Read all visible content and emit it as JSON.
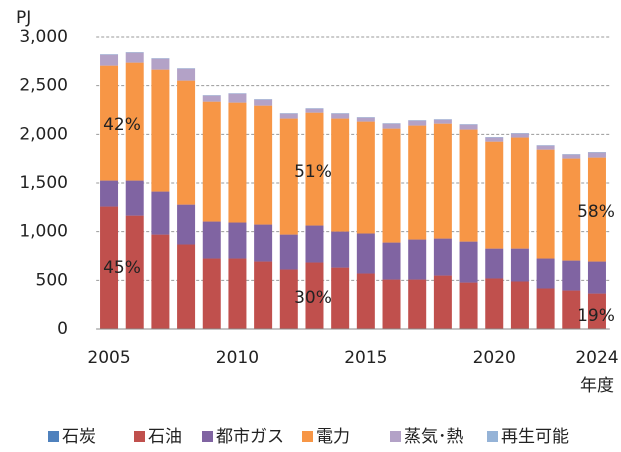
{
  "chart_data": {
    "type": "stacked_bar",
    "y_axis_label": "PJ",
    "x_axis_label": "年度",
    "categories": [
      "2005",
      null,
      null,
      null,
      null,
      "2010",
      null,
      null,
      null,
      null,
      "2015",
      null,
      null,
      null,
      null,
      "2020",
      null,
      null,
      null,
      "2024"
    ],
    "series": [
      {
        "name": "石炭",
        "color": "#4f81bd",
        "values": [
          5,
          5,
          5,
          5,
          5,
          5,
          5,
          5,
          5,
          5,
          5,
          5,
          5,
          5,
          5,
          5,
          5,
          5,
          5,
          5
        ]
      },
      {
        "name": "石油",
        "color": "#c0504d",
        "values": [
          1253,
          1160,
          965,
          863,
          719,
          719,
          688,
          606,
          678,
          626,
          565,
          503,
          503,
          544,
          472,
          514,
          483,
          411,
          390,
          359
        ]
      },
      {
        "name": "都市ガス",
        "color": "#8064a2",
        "values": [
          267,
          360,
          442,
          410,
          380,
          370,
          380,
          359,
          380,
          370,
          411,
          380,
          411,
          380,
          421,
          307,
          338,
          308,
          308,
          329
        ]
      },
      {
        "name": "電力",
        "color": "#f79646",
        "values": [
          1181,
          1212,
          1253,
          1274,
          1232,
          1232,
          1222,
          1192,
          1160,
          1161,
          1150,
          1171,
          1171,
          1181,
          1151,
          1099,
          1141,
          1119,
          1048,
          1068
        ]
      },
      {
        "name": "蒸気･熱",
        "color": "#b3a2c7",
        "values": [
          113,
          103,
          113,
          123,
          62,
          92,
          62,
          51,
          41,
          51,
          41,
          51,
          51,
          41,
          51,
          42,
          41,
          41,
          41,
          52
        ]
      },
      {
        "name": "再生可能",
        "color": "#95b3d7",
        "values": [
          5,
          5,
          5,
          5,
          5,
          5,
          5,
          5,
          5,
          5,
          5,
          5,
          5,
          5,
          5,
          5,
          5,
          5,
          5,
          5
        ]
      }
    ],
    "ylim": [
      0,
      3000
    ],
    "yticks": [
      0,
      500,
      {
        "value": 1000,
        "label": "1,000"
      },
      {
        "value": 1500,
        "label": "1,500"
      },
      {
        "value": 2000,
        "label": "2,000"
      },
      {
        "value": 2500,
        "label": "2,500"
      },
      {
        "value": 3000,
        "label": "3,000"
      }
    ],
    "grid": true,
    "annotations": [
      "42%",
      "45%",
      "51%",
      "30%",
      "58%",
      "19%"
    ]
  }
}
